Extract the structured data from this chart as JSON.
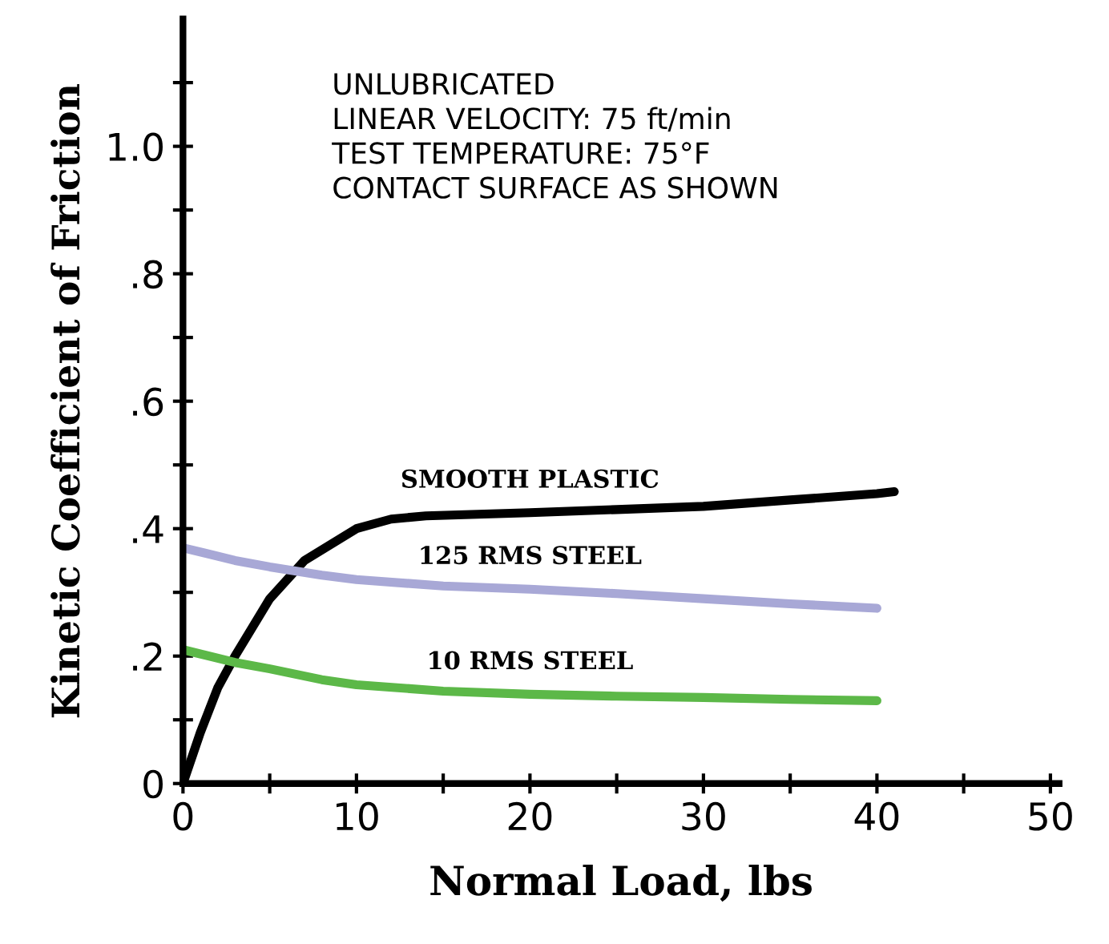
{
  "chart_data": {
    "type": "line",
    "xlabel": "Normal Load, lbs",
    "ylabel": "Kinetic Coefficient of Friction",
    "annotations": [
      "UNLUBRICATED",
      "LINEAR VELOCITY: 75 ft/min",
      "TEST TEMPERATURE: 75°F",
      "CONTACT SURFACE AS SHOWN"
    ],
    "series": [
      {
        "name": "SMOOTH PLASTIC",
        "color": "#000000",
        "x": [
          0,
          1,
          2,
          3,
          5,
          7,
          10,
          12,
          14,
          20,
          25,
          30,
          35,
          40,
          41
        ],
        "values": [
          0,
          0.08,
          0.15,
          0.2,
          0.29,
          0.35,
          0.4,
          0.415,
          0.42,
          0.425,
          0.43,
          0.435,
          0.445,
          0.455,
          0.458
        ]
      },
      {
        "name": "125 RMS STEEL",
        "color": "#a8a8d6",
        "x": [
          0,
          3,
          5,
          8,
          10,
          15,
          20,
          25,
          30,
          35,
          40
        ],
        "values": [
          0.37,
          0.35,
          0.34,
          0.327,
          0.32,
          0.31,
          0.305,
          0.298,
          0.29,
          0.282,
          0.275
        ]
      },
      {
        "name": "10 RMS STEEL",
        "color": "#5cb848",
        "x": [
          0,
          3,
          5,
          8,
          10,
          15,
          20,
          25,
          30,
          35,
          40
        ],
        "values": [
          0.21,
          0.19,
          0.18,
          0.163,
          0.155,
          0.145,
          0.14,
          0.137,
          0.135,
          0.132,
          0.13
        ]
      }
    ],
    "xlim": [
      0,
      50.5
    ],
    "ylim": [
      0,
      1.2
    ],
    "xticks": [
      0,
      {
        "value": 5,
        "label": null
      },
      10,
      {
        "value": 15,
        "label": null
      },
      20,
      {
        "value": 25,
        "label": null
      },
      30,
      {
        "value": 35,
        "label": null
      },
      40,
      {
        "value": 45,
        "label": null
      },
      50
    ],
    "yticks": [
      0,
      {
        "value": 0.1,
        "label": null
      },
      {
        "value": 0.2,
        "label": ".2"
      },
      {
        "value": 0.3,
        "label": null
      },
      {
        "value": 0.4,
        "label": ".4"
      },
      {
        "value": 0.5,
        "label": null
      },
      {
        "value": 0.6,
        "label": ".6"
      },
      {
        "value": 0.7,
        "label": null
      },
      {
        "value": 0.8,
        "label": ".8"
      },
      {
        "value": 0.9,
        "label": null
      },
      {
        "value": 1.0,
        "label": "1.0"
      },
      {
        "value": 1.1,
        "label": null
      }
    ],
    "grid": false,
    "legend": false,
    "marker": "none",
    "line_style": "solid"
  }
}
